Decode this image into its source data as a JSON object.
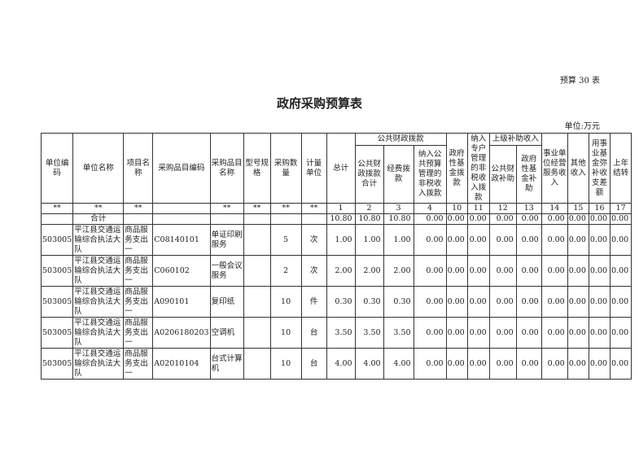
{
  "form_no": "预算 30 表",
  "title": "政府采购预算表",
  "unit": "单位:万元",
  "headers": {
    "c1": "单位编码",
    "c2": "单位名称",
    "c3": "项目名称",
    "c4": "采购品目编码",
    "c5": "采购品目名称",
    "c6": "型号规格",
    "c7": "采购数量",
    "c8": "计量单位",
    "c9": "总计",
    "grp1": "公共财政拨款",
    "c10": "公共财政拨款合计",
    "c11": "经费拨款",
    "c12": "纳入公共预算管理的非税收入拨款",
    "c13": "政府性基金拨款",
    "c14": "纳入专户管理的非税收入拨款",
    "grp2": "上级补助收入",
    "c15": "公共财政补助",
    "c16": "政府性基金补助",
    "c17": "事业单位经营服务收入",
    "c18": "其他收入",
    "c19": "用事业基金弥补收支差额",
    "c20": "上年结转"
  },
  "index_row": [
    "**",
    "**",
    "**",
    "",
    "**",
    "**",
    "**",
    "**",
    "1",
    "2",
    "3",
    "4",
    "10",
    "11",
    "12",
    "13",
    "14",
    "15",
    "16",
    "17"
  ],
  "total_row": {
    "label": "合计",
    "values": [
      "10.80",
      "10.80",
      "10.80",
      "0.00",
      "0.00",
      "0.00",
      "0.00",
      "0.00",
      "0.00",
      "0.00",
      "0.00",
      "0.00"
    ]
  },
  "rows": [
    {
      "code": "503005",
      "unit": "平江县交通运输综合执法大队",
      "project": "商品服务支出一",
      "item_code": "C08140101",
      "item_name": "单证印刷服务",
      "spec": "",
      "qty": "5",
      "measure": "次",
      "values": [
        "1.00",
        "1.00",
        "1.00",
        "0.00",
        "0.00",
        "0.00",
        "0.00",
        "0.00",
        "0.00",
        "0.00",
        "0.00",
        "0.00"
      ]
    },
    {
      "code": "503005",
      "unit": "平江县交通运输综合执法大队",
      "project": "商品服务支出一",
      "item_code": "C060102",
      "item_name": "一般会议服务",
      "spec": "",
      "qty": "2",
      "measure": "次",
      "values": [
        "2.00",
        "2.00",
        "2.00",
        "0.00",
        "0.00",
        "0.00",
        "0.00",
        "0.00",
        "0.00",
        "0.00",
        "0.00",
        "0.00"
      ]
    },
    {
      "code": "503005",
      "unit": "平江县交通运输综合执法大队",
      "project": "商品服务支出一",
      "item_code": "A090101",
      "item_name": "复印纸",
      "spec": "",
      "qty": "10",
      "measure": "件",
      "values": [
        "0.30",
        "0.30",
        "0.30",
        "0.00",
        "0.00",
        "0.00",
        "0.00",
        "0.00",
        "0.00",
        "0.00",
        "0.00",
        "0.00"
      ]
    },
    {
      "code": "503005",
      "unit": "平江县交通运输综合执法大队",
      "project": "商品服务支出一",
      "item_code": "A0206180203",
      "item_name": "空调机",
      "spec": "",
      "qty": "10",
      "measure": "台",
      "values": [
        "3.50",
        "3.50",
        "3.50",
        "0.00",
        "0.00",
        "0.00",
        "0.00",
        "0.00",
        "0.00",
        "0.00",
        "0.00",
        "0.00"
      ]
    },
    {
      "code": "503005",
      "unit": "平江县交通运输综合执法大队",
      "project": "商品服务支出一",
      "item_code": "A02010104",
      "item_name": "台式计算机",
      "spec": "",
      "qty": "10",
      "measure": "台",
      "values": [
        "4.00",
        "4.00",
        "4.00",
        "0.00",
        "0.00",
        "0.00",
        "0.00",
        "0.00",
        "0.00",
        "0.00",
        "0.00",
        "0.00"
      ]
    }
  ]
}
